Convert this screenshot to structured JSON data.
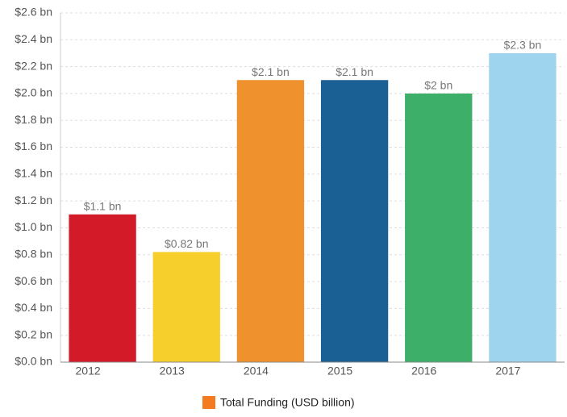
{
  "chart_data": {
    "type": "bar",
    "categories": [
      "2012",
      "2013",
      "2014",
      "2015",
      "2016",
      "2017"
    ],
    "values": [
      1.1,
      0.82,
      2.1,
      2.1,
      2.0,
      2.3
    ],
    "value_labels": [
      "$1.1 bn",
      "$0.82 bn",
      "$2.1 bn",
      "$2.1 bn",
      "$2 bn",
      "$2.3 bn"
    ],
    "colors": [
      "#d31a28",
      "#f7cf2c",
      "#ef922e",
      "#1b6094",
      "#3daf69",
      "#9fd4ee"
    ],
    "ylim": [
      0,
      2.6
    ],
    "yticks": [
      {
        "value": 0,
        "label": "$0.0 bn"
      },
      {
        "value": 0.2,
        "label": "$0.2 bn"
      },
      {
        "value": 0.4,
        "label": "$0.4 bn"
      },
      {
        "value": 0.6,
        "label": "$0.6 bn"
      },
      {
        "value": 0.8,
        "label": "$0.8 bn"
      },
      {
        "value": 1.0,
        "label": "$1.0 bn"
      },
      {
        "value": 1.2,
        "label": "$1.2 bn"
      },
      {
        "value": 1.4,
        "label": "$1.4 bn"
      },
      {
        "value": 1.6,
        "label": "$1.6 bn"
      },
      {
        "value": 1.8,
        "label": "$1.8 bn"
      },
      {
        "value": 2.0,
        "label": "$2.0 bn"
      },
      {
        "value": 2.2,
        "label": "$2.2 bn"
      },
      {
        "value": 2.4,
        "label": "$2.4 bn"
      },
      {
        "value": 2.6,
        "label": "$2.6 bn"
      }
    ],
    "grid": true,
    "legend": {
      "name": "Total Funding (USD billion)",
      "color": "#f47b20",
      "position": "bottom"
    }
  }
}
